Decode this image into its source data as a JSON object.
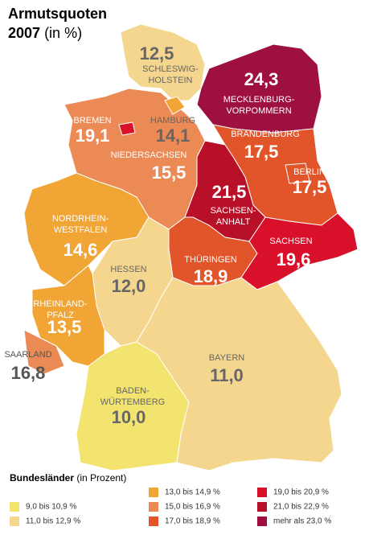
{
  "title": {
    "line1": "Armutsquoten",
    "year": "2007",
    "unit": "(in %)"
  },
  "states": [
    {
      "name": [
        "SCHLESWIG-",
        "HOLSTEIN"
      ],
      "value": "12,5",
      "color": "#f5d68e"
    },
    {
      "name": [
        "MECKLENBURG-",
        "VORPOMMERN"
      ],
      "value": "24,3",
      "color": "#9e1040"
    },
    {
      "name": [
        "NIEDERSACHSEN"
      ],
      "value": "15,5",
      "color": "#ec8a55"
    },
    {
      "name": [
        "HAMBURG"
      ],
      "value": "14,1",
      "color": "#f0a535"
    },
    {
      "name": [
        "BREMEN"
      ],
      "value": "19,1",
      "color": "#d9102a"
    },
    {
      "name": [
        "BRANDENBURG"
      ],
      "value": "17,5",
      "color": "#e2542a"
    },
    {
      "name": [
        "BERLIN"
      ],
      "value": "17,5",
      "color": "#e2542a"
    },
    {
      "name": [
        "SACHSEN-",
        "ANHALT"
      ],
      "value": "21,5",
      "color": "#b9102a"
    },
    {
      "name": [
        "NORDRHEIN-",
        "WESTFALEN"
      ],
      "value": "14,6",
      "color": "#f0a535"
    },
    {
      "name": [
        "THÜRINGEN"
      ],
      "value": "18,9",
      "color": "#e2542a"
    },
    {
      "name": [
        "SACHSEN"
      ],
      "value": "19,6",
      "color": "#d9102a"
    },
    {
      "name": [
        "HESSEN"
      ],
      "value": "12,0",
      "color": "#f5d68e"
    },
    {
      "name": [
        "RHEINLAND-",
        "PFALZ"
      ],
      "value": "13,5",
      "color": "#f0a535"
    },
    {
      "name": [
        "SAARLAND"
      ],
      "value": "16,8",
      "color": "#ec8a55"
    },
    {
      "name": [
        "BADEN-",
        "WÜRTEMBERG"
      ],
      "value": "10,0",
      "color": "#f2e46e"
    },
    {
      "name": [
        "BAYERN"
      ],
      "value": "11,0",
      "color": "#f5d68e"
    }
  ],
  "legend": {
    "title": "Bundesländer",
    "subtitle": "(in Prozent)",
    "items": [
      {
        "label": "9,0 bis 10,9 %",
        "color": "#f2e46e"
      },
      {
        "label": "11,0 bis 12,9 %",
        "color": "#f5d68e"
      },
      {
        "label": "13,0 bis 14,9 %",
        "color": "#f0a535"
      },
      {
        "label": "15,0 bis 16,9 %",
        "color": "#ec8a55"
      },
      {
        "label": "17,0 bis 18,9 %",
        "color": "#e2542a"
      },
      {
        "label": "19,0 bis 20,9 %",
        "color": "#d9102a"
      },
      {
        "label": "21,0 bis 22,9 %",
        "color": "#b9102a"
      },
      {
        "label": "mehr als 23,0 %",
        "color": "#9e1040"
      }
    ]
  }
}
